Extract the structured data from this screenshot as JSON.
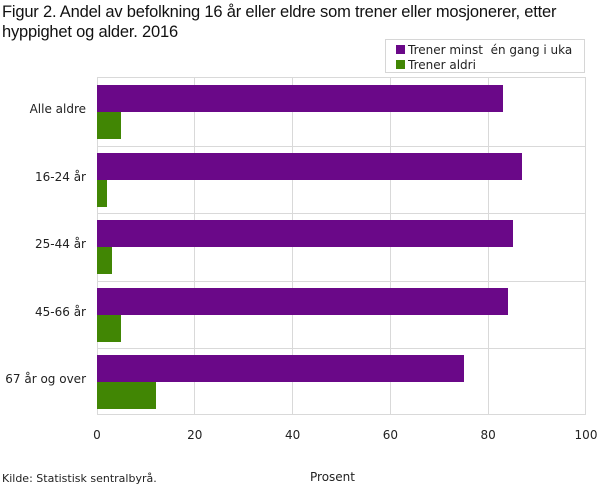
{
  "chart_data": {
    "type": "bar",
    "orientation": "horizontal",
    "title": "Figur 2. Andel av befolkning 16 år eller eldre som trener eller mosjonerer, etter hyppighet og alder. 2016",
    "categories": [
      "Alle aldre",
      "16-24 år",
      "25-44 år",
      "45-66 år",
      "67 år og over"
    ],
    "series": [
      {
        "name": "Trener minst  én gang i uka",
        "color": "#6a0888",
        "values": [
          83,
          87,
          85,
          84,
          75
        ]
      },
      {
        "name": "Trener aldri",
        "color": "#418604",
        "values": [
          5,
          2,
          3,
          5,
          12
        ]
      }
    ],
    "xlabel": "Prosent",
    "ylabel": "",
    "xlim": [
      0,
      100
    ],
    "xticks": [
      "0",
      "20",
      "40",
      "60",
      "80",
      "100"
    ],
    "grid": true,
    "legend_position": "top-right"
  },
  "header": {
    "title_line1": "Figur 2. Andel av befolkning 16 år eller eldre som trener eller mosjonerer, etter",
    "title_line2": "hyppighet og alder. 2016"
  },
  "legend": {
    "items": [
      {
        "label": "Trener minst  én gang i uka",
        "color": "#6a0888"
      },
      {
        "label": "Trener aldri",
        "color": "#418604"
      }
    ]
  },
  "footer": {
    "source": "Kilde: Statistisk sentralbyrå.",
    "xlabel": "Prosent"
  }
}
